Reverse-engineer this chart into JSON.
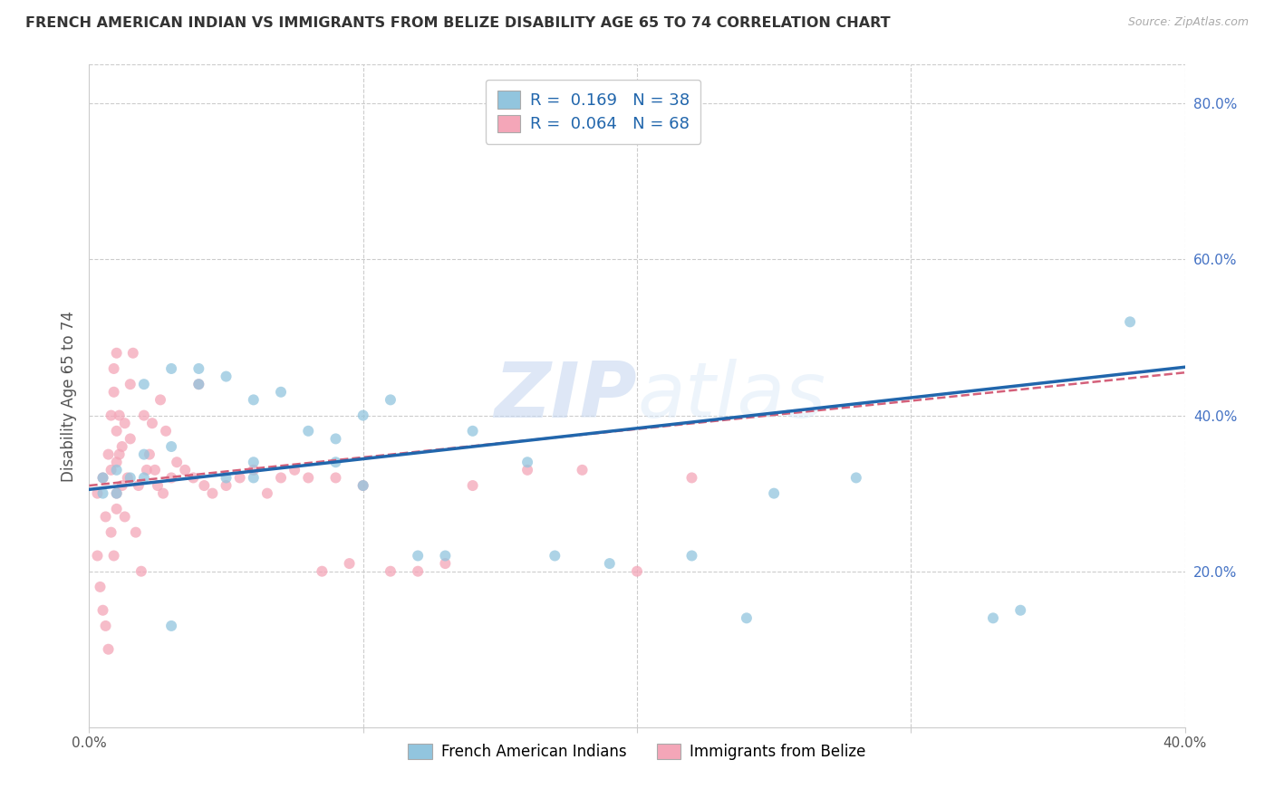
{
  "title": "FRENCH AMERICAN INDIAN VS IMMIGRANTS FROM BELIZE DISABILITY AGE 65 TO 74 CORRELATION CHART",
  "source": "Source: ZipAtlas.com",
  "ylabel": "Disability Age 65 to 74",
  "xlim": [
    0.0,
    0.4
  ],
  "ylim": [
    0.0,
    0.85
  ],
  "y_ticks_right": [
    0.2,
    0.4,
    0.6,
    0.8
  ],
  "y_tick_labels_right": [
    "20.0%",
    "40.0%",
    "60.0%",
    "80.0%"
  ],
  "blue_scatter_x": [
    0.005,
    0.01,
    0.01,
    0.02,
    0.02,
    0.02,
    0.03,
    0.03,
    0.04,
    0.04,
    0.05,
    0.05,
    0.06,
    0.06,
    0.07,
    0.08,
    0.09,
    0.09,
    0.1,
    0.1,
    0.11,
    0.12,
    0.13,
    0.14,
    0.16,
    0.17,
    0.19,
    0.22,
    0.24,
    0.25,
    0.28,
    0.33,
    0.34,
    0.38,
    0.005,
    0.015,
    0.03,
    0.06
  ],
  "blue_scatter_y": [
    0.32,
    0.3,
    0.33,
    0.35,
    0.32,
    0.44,
    0.36,
    0.46,
    0.44,
    0.46,
    0.45,
    0.32,
    0.42,
    0.34,
    0.43,
    0.38,
    0.37,
    0.34,
    0.4,
    0.31,
    0.42,
    0.22,
    0.22,
    0.38,
    0.34,
    0.22,
    0.21,
    0.22,
    0.14,
    0.3,
    0.32,
    0.14,
    0.15,
    0.52,
    0.3,
    0.32,
    0.13,
    0.32
  ],
  "pink_scatter_x": [
    0.003,
    0.003,
    0.004,
    0.005,
    0.005,
    0.006,
    0.006,
    0.007,
    0.007,
    0.008,
    0.008,
    0.008,
    0.009,
    0.009,
    0.009,
    0.01,
    0.01,
    0.01,
    0.01,
    0.01,
    0.011,
    0.011,
    0.012,
    0.012,
    0.013,
    0.013,
    0.014,
    0.015,
    0.015,
    0.016,
    0.017,
    0.018,
    0.019,
    0.02,
    0.021,
    0.022,
    0.023,
    0.024,
    0.025,
    0.026,
    0.027,
    0.028,
    0.03,
    0.032,
    0.035,
    0.038,
    0.04,
    0.042,
    0.045,
    0.05,
    0.055,
    0.06,
    0.065,
    0.07,
    0.075,
    0.08,
    0.085,
    0.09,
    0.095,
    0.1,
    0.11,
    0.12,
    0.13,
    0.14,
    0.16,
    0.18,
    0.2,
    0.22
  ],
  "pink_scatter_y": [
    0.3,
    0.22,
    0.18,
    0.32,
    0.15,
    0.27,
    0.13,
    0.35,
    0.1,
    0.4,
    0.25,
    0.33,
    0.43,
    0.46,
    0.22,
    0.48,
    0.38,
    0.34,
    0.3,
    0.28,
    0.35,
    0.4,
    0.36,
    0.31,
    0.39,
    0.27,
    0.32,
    0.44,
    0.37,
    0.48,
    0.25,
    0.31,
    0.2,
    0.4,
    0.33,
    0.35,
    0.39,
    0.33,
    0.31,
    0.42,
    0.3,
    0.38,
    0.32,
    0.34,
    0.33,
    0.32,
    0.44,
    0.31,
    0.3,
    0.31,
    0.32,
    0.33,
    0.3,
    0.32,
    0.33,
    0.32,
    0.2,
    0.32,
    0.21,
    0.31,
    0.2,
    0.2,
    0.21,
    0.31,
    0.33,
    0.33,
    0.2,
    0.32
  ],
  "blue_color": "#92c5de",
  "pink_color": "#f4a6b8",
  "blue_line_color": "#2166ac",
  "pink_line_color": "#d4607a",
  "blue_R": 0.169,
  "blue_N": 38,
  "pink_R": 0.064,
  "pink_N": 68,
  "watermark_zip": "ZIP",
  "watermark_atlas": "atlas",
  "legend_label_blue": "French American Indians",
  "legend_label_pink": "Immigrants from Belize",
  "background_color": "#ffffff",
  "grid_color": "#cccccc"
}
